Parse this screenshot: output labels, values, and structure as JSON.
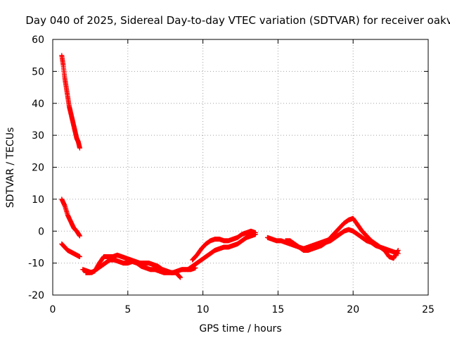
{
  "chart_data": {
    "type": "scatter",
    "title": "Day 040 of 2025, Sidereal Day-to-day VTEC variation (SDTVAR) for receiver oakv",
    "xlabel": "GPS time / hours",
    "ylabel": "SDTVAR / TECUs",
    "xlim": [
      0,
      25
    ],
    "ylim": [
      -20,
      60
    ],
    "xticks": [
      0,
      5,
      10,
      15,
      20,
      25
    ],
    "xtick_labels": [
      "0",
      "5",
      "10",
      "15",
      "20",
      "25"
    ],
    "yticks": [
      -20,
      -10,
      0,
      10,
      20,
      30,
      40,
      50,
      60
    ],
    "ytick_labels": [
      "-20",
      "-10",
      "0",
      "10",
      "20",
      "30",
      "40",
      "50",
      "60"
    ],
    "grid": true,
    "legend": "none",
    "marker": "plus",
    "color": "#ff0000",
    "series": [
      {
        "name": "track-1",
        "x": [
          0.6,
          0.7,
          0.8,
          0.9,
          1.0,
          1.1,
          1.2,
          1.3,
          1.4,
          1.5,
          1.6,
          1.7,
          1.8
        ],
        "y": [
          55,
          52,
          48,
          45,
          42,
          39,
          37,
          35,
          33,
          31,
          29,
          28,
          26
        ]
      },
      {
        "name": "track-2",
        "x": [
          0.6,
          0.8,
          1.0,
          1.2,
          1.4,
          1.6,
          1.8
        ],
        "y": [
          10,
          8,
          5,
          3,
          1,
          0,
          -1.5
        ]
      },
      {
        "name": "track-3",
        "x": [
          0.6,
          0.8,
          1.0,
          1.2,
          1.4,
          1.6,
          1.8
        ],
        "y": [
          -4,
          -5,
          -6,
          -6.5,
          -7,
          -7.5,
          -8
        ]
      },
      {
        "name": "track-4",
        "x": [
          2.0,
          2.3,
          2.6,
          2.9,
          3.2,
          3.5,
          3.8,
          4.1,
          4.4,
          4.7,
          5.0,
          5.3,
          5.6,
          5.9,
          6.2,
          6.5,
          6.8,
          7.1,
          7.4,
          7.7,
          8.0,
          8.3,
          8.6,
          8.9,
          9.2,
          9.5
        ],
        "y": [
          -12,
          -12.5,
          -13,
          -12,
          -11,
          -10,
          -9,
          -9,
          -9.5,
          -10,
          -10,
          -9.5,
          -10,
          -11,
          -11.5,
          -12,
          -12,
          -12.5,
          -13,
          -13,
          -13,
          -12.5,
          -12,
          -12,
          -12,
          -11.5
        ]
      },
      {
        "name": "track-5",
        "x": [
          2.2,
          2.5,
          2.8,
          3.1,
          3.4,
          3.7,
          4.0,
          4.3,
          4.6,
          4.9,
          5.2,
          5.5,
          5.8,
          6.1,
          6.4,
          6.7,
          7.0,
          7.3,
          7.6,
          7.9,
          8.2,
          8.5
        ],
        "y": [
          -13,
          -13,
          -12.5,
          -10,
          -8,
          -8,
          -8,
          -7.5,
          -8,
          -8.5,
          -9,
          -9.5,
          -10,
          -10,
          -10,
          -10.5,
          -11,
          -12,
          -12.5,
          -13,
          -13,
          -14.5
        ]
      },
      {
        "name": "track-6",
        "x": [
          9.0,
          9.3,
          9.6,
          9.9,
          10.2,
          10.5,
          10.8,
          11.1,
          11.4,
          11.7,
          12.0,
          12.3,
          12.6,
          12.9,
          13.2,
          13.5
        ],
        "y": [
          -12,
          -11,
          -10,
          -9,
          -8,
          -7,
          -6,
          -5.5,
          -5,
          -5,
          -4.5,
          -4,
          -3,
          -2,
          -1.5,
          -1
        ]
      },
      {
        "name": "track-7",
        "x": [
          9.3,
          9.6,
          9.9,
          10.2,
          10.5,
          10.8,
          11.1,
          11.4,
          11.7,
          12.0,
          12.3,
          12.6,
          12.9,
          13.2,
          13.5
        ],
        "y": [
          -9,
          -7.5,
          -5.5,
          -4,
          -3,
          -2.5,
          -2.5,
          -3,
          -3,
          -2.5,
          -2,
          -1,
          -0.5,
          0,
          -0.5
        ]
      },
      {
        "name": "track-8",
        "x": [
          14.3,
          14.6,
          14.9,
          15.2,
          15.5,
          15.8,
          16.1,
          16.4,
          16.7,
          17.0,
          17.3,
          17.6,
          17.9,
          18.2,
          18.5
        ],
        "y": [
          -2,
          -2.5,
          -3,
          -3,
          -3.5,
          -4,
          -4.5,
          -5,
          -5.5,
          -5,
          -4.5,
          -4,
          -3.5,
          -3,
          -2.5
        ]
      },
      {
        "name": "track-9",
        "x": [
          15.5,
          15.8,
          16.1,
          16.4,
          16.7,
          17.0,
          17.3,
          17.6,
          17.9,
          18.2,
          18.5,
          18.8,
          19.1,
          19.4,
          19.7,
          20.0,
          20.3,
          20.6,
          20.9,
          21.2,
          21.5,
          21.8,
          22.1,
          22.4,
          22.7,
          23.0
        ],
        "y": [
          -3,
          -3,
          -4,
          -5,
          -6,
          -6,
          -5.5,
          -5,
          -4.5,
          -3.5,
          -3,
          -2,
          -1,
          0,
          0.5,
          0,
          -1,
          -2,
          -3,
          -3.5,
          -4.5,
          -5,
          -5.5,
          -6,
          -6.5,
          -7
        ]
      },
      {
        "name": "track-10",
        "x": [
          18.5,
          18.8,
          19.1,
          19.4,
          19.7,
          20.0,
          20.3,
          20.6,
          20.9,
          21.2,
          21.5,
          21.8,
          22.1,
          22.4,
          22.7,
          23.0
        ],
        "y": [
          -2,
          -0.5,
          1,
          2.5,
          3.5,
          4,
          2,
          0,
          -1.5,
          -3,
          -4,
          -5,
          -6,
          -8,
          -8.5,
          -6
        ]
      }
    ]
  }
}
